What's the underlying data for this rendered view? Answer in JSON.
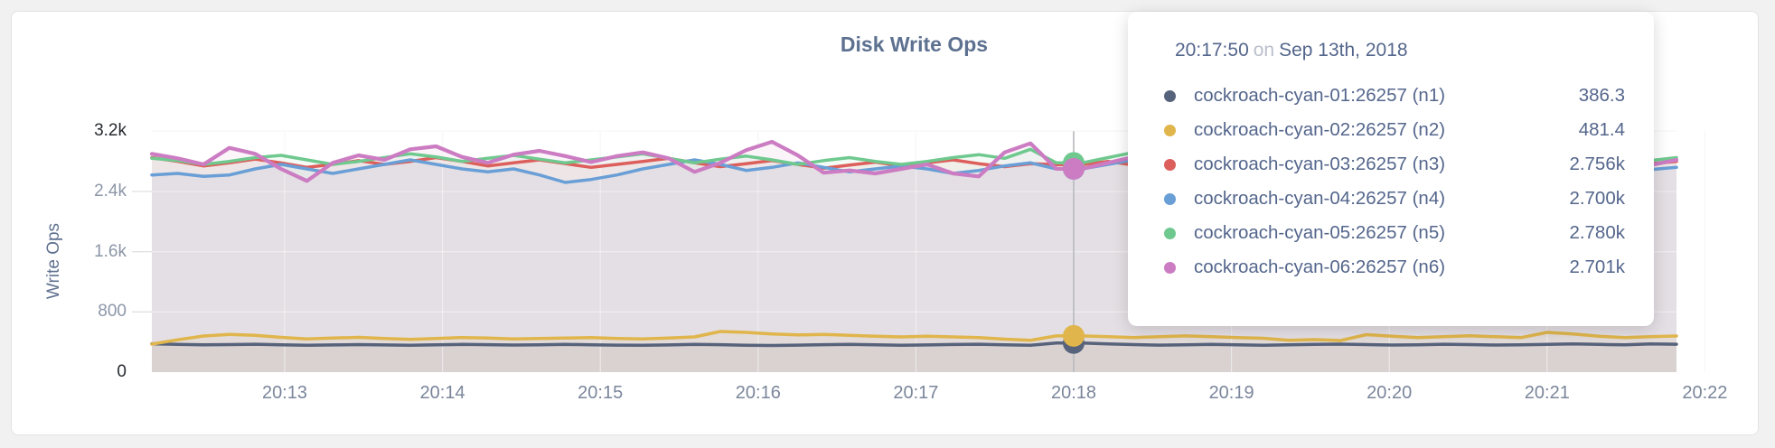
{
  "header": {
    "title": "Disk Write Ops"
  },
  "axes": {
    "y_label": "Write Ops"
  },
  "chart_data": {
    "type": "line",
    "title": "Disk Write Ops",
    "xlabel": "",
    "ylabel": "Write Ops",
    "ylim": [
      0,
      3200
    ],
    "grid": true,
    "legend_position": "tooltip",
    "x_ticks": [
      "20:13",
      "20:14",
      "20:15",
      "20:16",
      "20:17",
      "20:18",
      "20:19",
      "20:20",
      "20:21",
      "20:22"
    ],
    "y_ticks": [
      {
        "label": "0",
        "value": 0,
        "strong": true
      },
      {
        "label": "800",
        "value": 800,
        "strong": false
      },
      {
        "label": "1.6k",
        "value": 1600,
        "strong": false
      },
      {
        "label": "2.4k",
        "value": 2400,
        "strong": false
      },
      {
        "label": "3.2k",
        "value": 3200,
        "strong": true
      }
    ],
    "hover": {
      "time": "20:17:50",
      "values": [
        386.3,
        481.4,
        2756,
        2700,
        2780,
        2701
      ]
    },
    "series": [
      {
        "name": "cockroach-cyan-01:26257 (n1)",
        "color": "#57627b",
        "values": [
          377,
          370,
          362,
          366,
          371,
          363,
          357,
          361,
          366,
          361,
          358,
          363,
          369,
          365,
          360,
          364,
          369,
          364,
          359,
          356,
          361,
          369,
          365,
          358,
          354,
          359,
          365,
          369,
          362,
          356,
          361,
          367,
          371,
          364,
          358,
          386,
          386.3,
          376,
          366,
          359,
          363,
          369,
          364,
          358,
          362,
          368,
          372,
          366,
          360,
          364,
          371,
          366,
          360,
          364,
          370,
          375,
          368,
          362,
          376,
          371
        ]
      },
      {
        "name": "cockroach-cyan-02:26257 (n2)",
        "color": "#e0b54b",
        "values": [
          372,
          430,
          480,
          502,
          488,
          462,
          442,
          452,
          462,
          448,
          436,
          448,
          460,
          452,
          442,
          447,
          453,
          458,
          448,
          442,
          452,
          468,
          540,
          528,
          508,
          494,
          500,
          488,
          478,
          468,
          478,
          468,
          458,
          438,
          422,
          481,
          481.4,
          472,
          460,
          470,
          481,
          470,
          460,
          450,
          422,
          432,
          420,
          498,
          478,
          458,
          470,
          482,
          470,
          460,
          528,
          508,
          478,
          458,
          472,
          480
        ]
      },
      {
        "name": "cockroach-cyan-03:26257 (n3)",
        "color": "#dd5f5c",
        "values": [
          2850,
          2800,
          2740,
          2780,
          2830,
          2780,
          2720,
          2760,
          2810,
          2760,
          2800,
          2850,
          2800,
          2740,
          2780,
          2820,
          2770,
          2720,
          2760,
          2800,
          2840,
          2780,
          2730,
          2770,
          2810,
          2760,
          2710,
          2750,
          2790,
          2740,
          2780,
          2820,
          2770,
          2730,
          2770,
          2756,
          2756,
          2800,
          2750,
          2710,
          2750,
          2790,
          2830,
          2780,
          2730,
          2770,
          2810,
          2760,
          2720,
          2760,
          2800,
          2840,
          2790,
          2740,
          2780,
          2820,
          2770,
          2730,
          2770,
          2800
        ]
      },
      {
        "name": "cockroach-cyan-04:26257 (n4)",
        "color": "#699fd6",
        "values": [
          2620,
          2640,
          2600,
          2620,
          2700,
          2760,
          2700,
          2640,
          2700,
          2760,
          2820,
          2760,
          2700,
          2660,
          2700,
          2620,
          2520,
          2560,
          2620,
          2700,
          2760,
          2820,
          2760,
          2680,
          2720,
          2780,
          2720,
          2660,
          2700,
          2740,
          2700,
          2640,
          2680,
          2740,
          2780,
          2700,
          2700,
          2760,
          2820,
          2760,
          2700,
          2660,
          2700,
          2760,
          2710,
          2660,
          2700,
          2750,
          2700,
          2650,
          2700,
          2760,
          2710,
          2660,
          2700,
          2750,
          2800,
          2740,
          2690,
          2720
        ]
      },
      {
        "name": "cockroach-cyan-05:26257 (n5)",
        "color": "#6fc98f",
        "values": [
          2840,
          2810,
          2760,
          2800,
          2850,
          2880,
          2820,
          2760,
          2800,
          2850,
          2900,
          2860,
          2800,
          2840,
          2880,
          2830,
          2780,
          2820,
          2860,
          2900,
          2840,
          2780,
          2830,
          2870,
          2820,
          2760,
          2810,
          2850,
          2800,
          2760,
          2800,
          2850,
          2890,
          2840,
          2960,
          2780,
          2780,
          2850,
          2920,
          2860,
          2800,
          2840,
          2880,
          2820,
          2770,
          2820,
          2860,
          2810,
          2760,
          2800,
          2850,
          2800,
          2740,
          2790,
          2840,
          2880,
          2820,
          2760,
          2810,
          2850
        ]
      },
      {
        "name": "cockroach-cyan-06:26257 (n6)",
        "color": "#cc7cc2",
        "values": [
          2900,
          2840,
          2760,
          2980,
          2900,
          2700,
          2540,
          2780,
          2880,
          2820,
          2960,
          3000,
          2860,
          2780,
          2890,
          2940,
          2870,
          2790,
          2870,
          2920,
          2840,
          2660,
          2780,
          2950,
          3060,
          2880,
          2650,
          2680,
          2640,
          2700,
          2760,
          2640,
          2600,
          2920,
          3040,
          2701,
          2701,
          2780,
          2860,
          2780,
          2660,
          2700,
          2760,
          2820,
          2700,
          2640,
          2720,
          2800,
          2860,
          2760,
          2700,
          2980,
          2850,
          2740,
          2860,
          2790,
          2700,
          2620,
          2750,
          2820
        ]
      }
    ]
  },
  "tooltip": {
    "time": "20:17:50",
    "connector": "on",
    "date": "Sep 13th, 2018",
    "rows": [
      {
        "name": "cockroach-cyan-01:26257 (n1)",
        "value": "386.3",
        "color": "#57627b"
      },
      {
        "name": "cockroach-cyan-02:26257 (n2)",
        "value": "481.4",
        "color": "#e0b54b"
      },
      {
        "name": "cockroach-cyan-03:26257 (n3)",
        "value": "2.756k",
        "color": "#dd5f5c"
      },
      {
        "name": "cockroach-cyan-04:26257 (n4)",
        "value": "2.700k",
        "color": "#699fd6"
      },
      {
        "name": "cockroach-cyan-05:26257 (n5)",
        "value": "2.780k",
        "color": "#6fc98f"
      },
      {
        "name": "cockroach-cyan-06:26257 (n6)",
        "value": "2.701k",
        "color": "#cc7cc2"
      }
    ]
  }
}
